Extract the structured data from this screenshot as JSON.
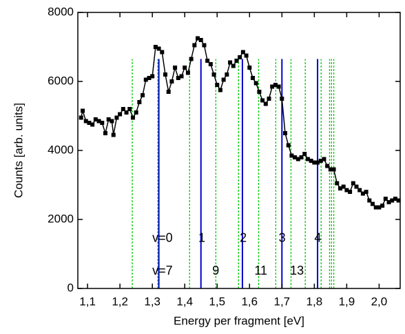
{
  "chart_data": {
    "type": "line",
    "xlabel": "Energy per fragment [eV]",
    "ylabel": "Counts [arb. units]",
    "xlim": [
      1.07,
      2.065
    ],
    "ylim": [
      0,
      8000
    ],
    "xticks": [
      {
        "value": 1.1,
        "label": "1,1"
      },
      {
        "value": 1.2,
        "label": "1,2"
      },
      {
        "value": 1.3,
        "label": "1,3"
      },
      {
        "value": 1.4,
        "label": "1,4"
      },
      {
        "value": 1.5,
        "label": "1,5"
      },
      {
        "value": 1.6,
        "label": "1,6"
      },
      {
        "value": 1.7,
        "label": "1,7"
      },
      {
        "value": 1.8,
        "label": "1,8"
      },
      {
        "value": 1.9,
        "label": "1,9"
      },
      {
        "value": 2.0,
        "label": "2,0"
      }
    ],
    "yticks": [
      0,
      2000,
      4000,
      6000,
      8000
    ],
    "x": [
      1.08,
      1.085,
      1.095,
      1.105,
      1.115,
      1.125,
      1.135,
      1.145,
      1.155,
      1.165,
      1.175,
      1.18,
      1.19,
      1.2,
      1.21,
      1.22,
      1.23,
      1.24,
      1.25,
      1.26,
      1.27,
      1.28,
      1.29,
      1.3,
      1.31,
      1.32,
      1.33,
      1.34,
      1.35,
      1.36,
      1.37,
      1.38,
      1.39,
      1.4,
      1.41,
      1.42,
      1.43,
      1.44,
      1.45,
      1.46,
      1.47,
      1.48,
      1.49,
      1.5,
      1.51,
      1.52,
      1.53,
      1.54,
      1.55,
      1.56,
      1.57,
      1.58,
      1.59,
      1.6,
      1.61,
      1.62,
      1.63,
      1.64,
      1.65,
      1.66,
      1.67,
      1.68,
      1.69,
      1.7,
      1.71,
      1.72,
      1.73,
      1.74,
      1.75,
      1.76,
      1.77,
      1.78,
      1.79,
      1.8,
      1.81,
      1.82,
      1.83,
      1.84,
      1.85,
      1.86,
      1.87,
      1.88,
      1.89,
      1.9,
      1.91,
      1.92,
      1.93,
      1.94,
      1.95,
      1.96,
      1.97,
      1.98,
      1.99,
      2.0,
      2.01,
      2.02,
      2.03,
      2.04,
      2.05,
      2.06
    ],
    "series": [
      {
        "color": "#000000",
        "values": [
          4950,
          5150,
          4850,
          4800,
          4750,
          4900,
          4850,
          4800,
          4500,
          4900,
          4850,
          4450,
          4950,
          5050,
          5200,
          5100,
          5200,
          4950,
          5100,
          5400,
          5600,
          6050,
          6100,
          6150,
          7000,
          6950,
          6850,
          6200,
          5700,
          6000,
          6400,
          6100,
          6150,
          6400,
          6250,
          6650,
          7050,
          7250,
          7200,
          7050,
          6600,
          6500,
          6200,
          5900,
          5750,
          6050,
          6200,
          6550,
          6450,
          6600,
          6700,
          6850,
          6750,
          6400,
          6100,
          5950,
          5700,
          5450,
          5350,
          5500,
          5850,
          5900,
          5850,
          5500,
          4500,
          4150,
          3850,
          3800,
          3750,
          3800,
          3900,
          3750,
          3700,
          3650,
          3650,
          3700,
          3750,
          3550,
          3450,
          3450,
          3050,
          2900,
          2950,
          2850,
          2800,
          3050,
          2950,
          2850,
          2750,
          2800,
          2550,
          2450,
          2350,
          2350,
          2400,
          2600,
          2500,
          2550,
          2600,
          2550
        ]
      }
    ],
    "vlines": [
      {
        "color": "#00cc00",
        "dashed": true,
        "top": 6650,
        "x": [
          1.238,
          1.317,
          1.415,
          1.496,
          1.566,
          1.628,
          1.681,
          1.728,
          1.772,
          1.821,
          1.847,
          1.853,
          1.86
        ]
      },
      {
        "color": "#0000cc",
        "dashed": false,
        "top": 6650,
        "x": [
          1.32,
          1.45,
          1.578,
          1.7,
          1.81
        ]
      }
    ],
    "annotations": [
      {
        "text": "v=0",
        "x": 1.3,
        "y": 1450,
        "color": "#1a1acc"
      },
      {
        "text": "1",
        "x": 1.442,
        "y": 1450,
        "color": "#1a1acc"
      },
      {
        "text": "2",
        "x": 1.57,
        "y": 1450,
        "color": "#1a1acc"
      },
      {
        "text": "3",
        "x": 1.69,
        "y": 1450,
        "color": "#1a1acc"
      },
      {
        "text": "4",
        "x": 1.8,
        "y": 1450,
        "color": "#1a1acc"
      },
      {
        "text": "v=7",
        "x": 1.3,
        "y": 500,
        "color": "#33dd33"
      },
      {
        "text": "9",
        "x": 1.485,
        "y": 500,
        "color": "#33dd33"
      },
      {
        "text": "11",
        "x": 1.615,
        "y": 500,
        "color": "#33dd33"
      },
      {
        "text": "13",
        "x": 1.725,
        "y": 500,
        "color": "#33dd33"
      }
    ]
  }
}
